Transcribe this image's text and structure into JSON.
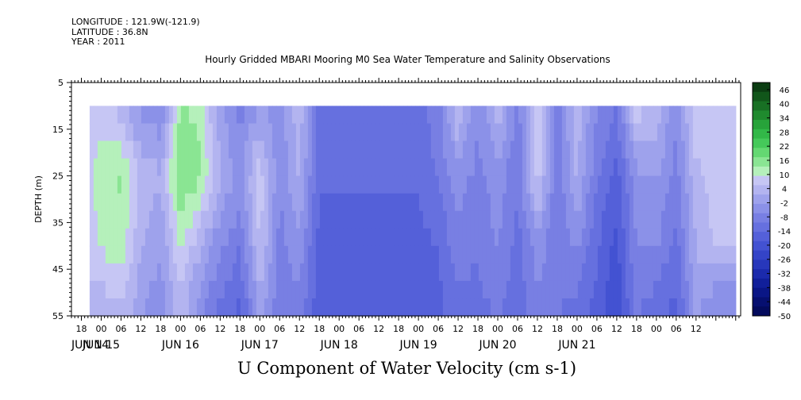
{
  "header": {
    "longitude": "LONGITUDE : 121.9W(-121.9)",
    "latitude": "LATITUDE : 36.8N",
    "year": "YEAR : 2011"
  },
  "chart_data": {
    "type": "heatmap",
    "title": "Hourly Gridded MBARI Mooring M0 Sea Water Temperature and Salinity Observations",
    "variable_label": "U Component of Water Velocity (cm s-1)",
    "ylabel": "DEPTH (m)",
    "y_axis": {
      "range": [
        5,
        55
      ],
      "ticks": [
        5,
        15,
        25,
        35,
        45,
        55
      ],
      "inverted": true
    },
    "data_depth_range": [
      10,
      55
    ],
    "x_axis": {
      "hour_ticks": [
        "18",
        "00",
        "06",
        "12",
        "18",
        "00",
        "06",
        "12",
        "18",
        "00",
        "06",
        "12",
        "18",
        "00",
        "06",
        "12",
        "18",
        "00",
        "06",
        "12",
        "18",
        "00",
        "06",
        "12",
        "18",
        "00",
        "06",
        "12",
        "18",
        "00",
        "06",
        "12"
      ],
      "day_labels": [
        "JUN 14",
        "JUN 15",
        "JUN 16",
        "JUN 17",
        "JUN 18",
        "JUN 19",
        "JUN 20",
        "JUN 21"
      ]
    },
    "colorbar": {
      "labels": [
        "46",
        "40",
        "34",
        "28",
        "22",
        "16",
        "10",
        "4",
        "-2",
        "-8",
        "-14",
        "-20",
        "-26",
        "-32",
        "-38",
        "-44",
        "-50"
      ],
      "colors_top_to_bottom": [
        "#0b3d12",
        "#11561a",
        "#187024",
        "#1f8a2e",
        "#27a33a",
        "#32b848",
        "#45c95a",
        "#64d872",
        "#8ae593",
        "#b5f0bb",
        "#c6c6f4",
        "#b3b4f0",
        "#9ea2ec",
        "#8b91e8",
        "#787fe3",
        "#6670df",
        "#5460d9",
        "#4352d2",
        "#3444c8",
        "#2737bb",
        "#1b2aac",
        "#111f9a",
        "#0a1686",
        "#060f70",
        "#030a5c"
      ]
    },
    "profile_hours": [
      -6,
      0,
      6,
      12,
      18,
      24,
      30,
      36,
      42,
      48,
      54,
      60,
      66,
      72,
      78,
      84,
      90,
      96,
      102,
      108,
      114,
      120,
      126,
      132,
      138,
      144,
      150,
      156,
      162,
      168,
      174,
      180,
      186,
      192
    ],
    "profile_depths": [
      10,
      25,
      40,
      55
    ],
    "u_values": [
      [
        6,
        6,
        4,
        6
      ],
      [
        6,
        12,
        10,
        2
      ],
      [
        4,
        14,
        12,
        4
      ],
      [
        -4,
        4,
        2,
        -2
      ],
      [
        -6,
        2,
        -2,
        -6
      ],
      [
        14,
        18,
        10,
        4
      ],
      [
        12,
        14,
        2,
        -6
      ],
      [
        -2,
        2,
        -6,
        -12
      ],
      [
        -8,
        -4,
        -10,
        -16
      ],
      [
        -2,
        8,
        6,
        -2
      ],
      [
        -4,
        -6,
        -8,
        -10
      ],
      [
        4,
        2,
        -4,
        -8
      ],
      [
        -12,
        -14,
        -16,
        -18
      ],
      [
        -12,
        -14,
        -16,
        -18
      ],
      [
        -12,
        -14,
        -16,
        -18
      ],
      [
        -12,
        -14,
        -16,
        -18
      ],
      [
        -12,
        -14,
        -16,
        -18
      ],
      [
        -12,
        -14,
        -16,
        -18
      ],
      [
        -8,
        -10,
        -14,
        -16
      ],
      [
        6,
        -4,
        -8,
        -12
      ],
      [
        -6,
        -8,
        -10,
        -12
      ],
      [
        4,
        -4,
        -6,
        -10
      ],
      [
        -8,
        -10,
        -12,
        -14
      ],
      [
        8,
        8,
        -4,
        -8
      ],
      [
        -8,
        -10,
        -10,
        -10
      ],
      [
        4,
        2,
        -6,
        -12
      ],
      [
        -6,
        -10,
        -14,
        -16
      ],
      [
        -10,
        -16,
        -20,
        -22
      ],
      [
        8,
        -4,
        -6,
        -10
      ],
      [
        4,
        -2,
        -6,
        -14
      ],
      [
        -6,
        -8,
        -12,
        -16
      ],
      [
        10,
        4,
        2,
        -2
      ],
      [
        6,
        8,
        6,
        -8
      ],
      [
        6,
        8,
        6,
        -8
      ]
    ]
  }
}
